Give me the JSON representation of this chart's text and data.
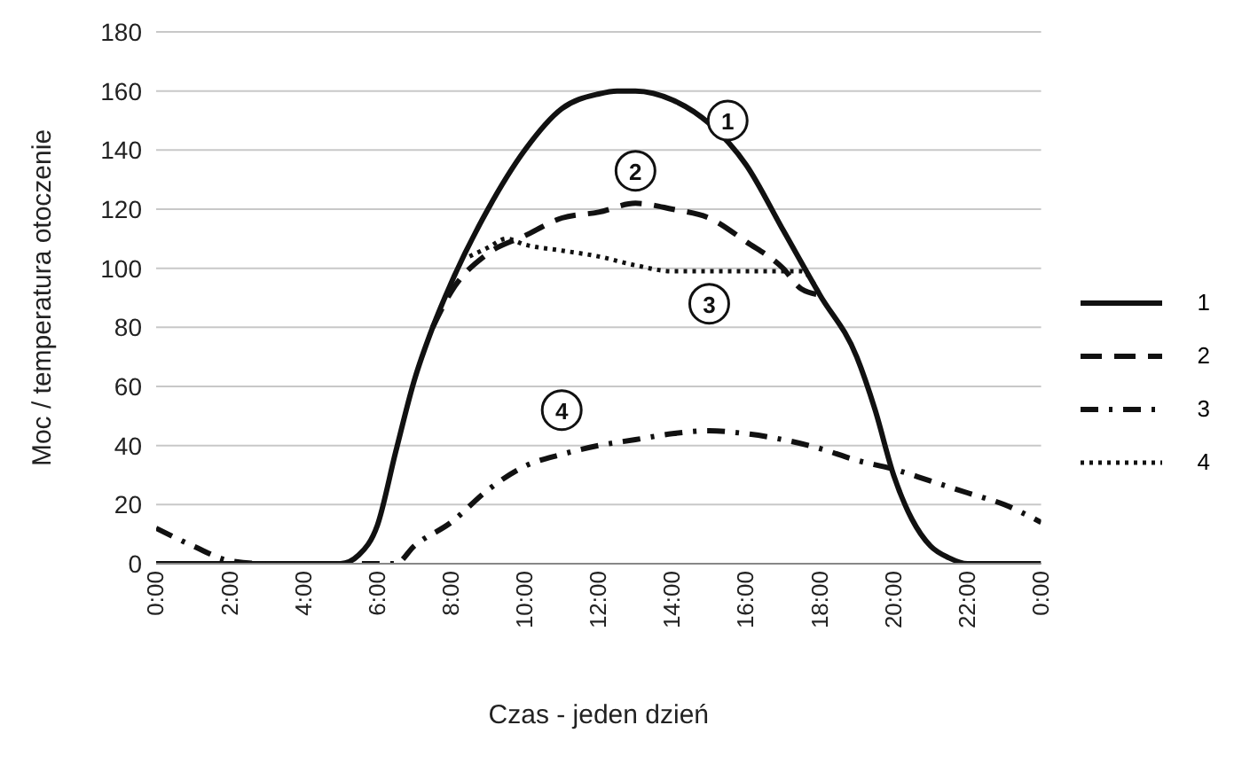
{
  "chart_data": {
    "type": "line",
    "xlabel": "Czas - jeden dzień",
    "ylabel": "Moc / temperatura otoczenie",
    "xlim": [
      0,
      24
    ],
    "xticks": [
      {
        "value": 0,
        "label": "0:00"
      },
      {
        "value": 2,
        "label": "2:00"
      },
      {
        "value": 4,
        "label": "4:00"
      },
      {
        "value": 6,
        "label": "6:00"
      },
      {
        "value": 8,
        "label": "8:00"
      },
      {
        "value": 10,
        "label": "10:00"
      },
      {
        "value": 12,
        "label": "12:00"
      },
      {
        "value": 14,
        "label": "14:00"
      },
      {
        "value": 16,
        "label": "16:00"
      },
      {
        "value": 18,
        "label": "18:00"
      },
      {
        "value": 20,
        "label": "20:00"
      },
      {
        "value": 22,
        "label": "22:00"
      },
      {
        "value": 24,
        "label": "0:00"
      }
    ],
    "ylim": [
      0,
      180
    ],
    "yticks": [
      0,
      20,
      40,
      60,
      80,
      100,
      120,
      140,
      160,
      180
    ],
    "grid": "y",
    "legend": "right",
    "marker": "none",
    "series": [
      {
        "name": "1",
        "color": "#111111",
        "line_style": "solid",
        "x": [
          0,
          2,
          4,
          5,
          5.5,
          6,
          6.5,
          7,
          7.5,
          8,
          9,
          10,
          11,
          12,
          12.5,
          13,
          14,
          15,
          16,
          17,
          18,
          19,
          19.5,
          20,
          20.5,
          21,
          21.5,
          22,
          24
        ],
        "values": [
          0,
          0,
          0,
          0,
          3,
          13,
          38,
          62,
          80,
          95,
          120,
          140,
          154,
          159,
          160,
          160,
          157,
          149,
          135,
          113,
          91,
          70,
          52,
          30,
          15,
          6,
          2,
          0,
          0
        ]
      },
      {
        "name": "2",
        "color": "#111111",
        "line_style": "dashed",
        "x": [
          7.5,
          8,
          9,
          10,
          11,
          12,
          13,
          14,
          15,
          16,
          17,
          17.5,
          18
        ],
        "values": [
          80,
          92,
          105,
          111,
          117,
          119,
          122,
          120,
          117,
          109,
          100,
          93,
          91
        ]
      },
      {
        "name": "3",
        "color": "#111111",
        "line_style": "dashdot",
        "x": [
          0,
          1,
          2,
          3,
          4,
          5,
          6,
          6.5,
          7,
          8,
          9,
          10,
          11,
          12,
          13,
          14,
          15,
          16,
          17,
          18,
          19,
          20,
          21,
          22,
          23,
          24
        ],
        "values": [
          12,
          6,
          1,
          0,
          0,
          0,
          0,
          0,
          6,
          14,
          25,
          33,
          37,
          40,
          42,
          44,
          45,
          44,
          42,
          39,
          35,
          32,
          28,
          24,
          20,
          14
        ]
      },
      {
        "name": "4",
        "color": "#111111",
        "line_style": "dotted",
        "x": [
          8.5,
          9,
          9.5,
          10,
          11,
          12,
          13,
          14,
          15,
          16,
          17,
          17.5,
          18
        ],
        "values": [
          104,
          107,
          110,
          108,
          106,
          104,
          101,
          99,
          99,
          99,
          99,
          99,
          91
        ]
      }
    ],
    "annotations": [
      {
        "text": "1",
        "x": 15.5,
        "y": 150
      },
      {
        "text": "2",
        "x": 13,
        "y": 133
      },
      {
        "text": "3",
        "x": 15,
        "y": 88
      },
      {
        "text": "4",
        "x": 11,
        "y": 52
      }
    ]
  }
}
